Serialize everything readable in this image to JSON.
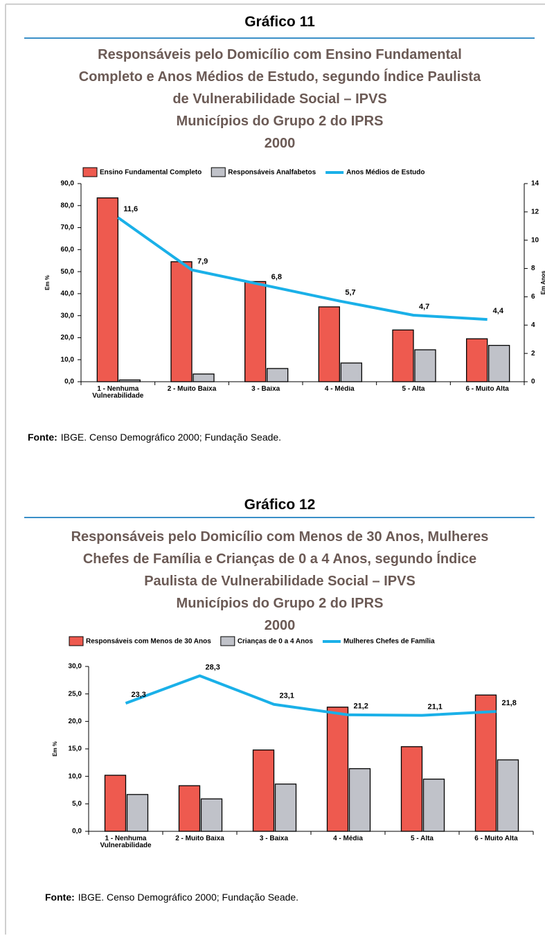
{
  "chart_data": [
    {
      "type": "bar",
      "label": "Gráfico 11",
      "title": [
        "Responsáveis pelo Domicílio com Ensino Fundamental",
        "Completo e Anos Médios de Estudo, segundo Índice Paulista",
        "de Vulnerabilidade Social – IPVS",
        "Municípios do Grupo 2 do IPRS",
        "2000"
      ],
      "categories": [
        "1 - Nenhuma Vulnerabilidade",
        "2 - Muito Baixa",
        "3 - Baixa",
        "4 - Média",
        "5 - Alta",
        "6 - Muito Alta"
      ],
      "series": [
        {
          "name": "Ensino Fundamental Completo",
          "color": "#ee5a4f",
          "values": [
            83.5,
            54.5,
            45.5,
            34,
            23.5,
            19.5
          ]
        },
        {
          "name": "Responsáveis Analfabetos",
          "color": "#c0c2c9",
          "values": [
            0.8,
            3.5,
            6,
            8.5,
            14.5,
            16.5
          ]
        },
        {
          "name": "Anos Médios de Estudo",
          "color": "#1ab0e8",
          "type": "line",
          "axis": "y2",
          "values": [
            11.6,
            7.9,
            6.8,
            5.7,
            4.7,
            4.4
          ],
          "value_labels": [
            "11,6",
            "7,9",
            "6,8",
            "5,7",
            "4,7",
            "4,4"
          ]
        }
      ],
      "ylabel": "Em %",
      "y2label": "Em Anos",
      "ylim": [
        0,
        90
      ],
      "yticks": [
        {
          "value": 0,
          "label": "0,0"
        },
        {
          "value": 10,
          "label": "10,0"
        },
        {
          "value": 20,
          "label": "20,0"
        },
        {
          "value": 30,
          "label": "30,0"
        },
        {
          "value": 40,
          "label": "40,0"
        },
        {
          "value": 50,
          "label": "50,0"
        },
        {
          "value": 60,
          "label": "60,0"
        },
        {
          "value": 70,
          "label": "70,0"
        },
        {
          "value": 80,
          "label": "80,0"
        },
        {
          "value": 90,
          "label": "90,0"
        }
      ],
      "y2lim": [
        0,
        14
      ],
      "y2ticks": [
        0,
        2,
        4,
        6,
        8,
        10,
        12,
        14
      ],
      "source_label": "Fonte:",
      "source": "IBGE. Censo Demográfico 2000; Fundação Seade."
    },
    {
      "type": "bar",
      "label": "Gráfico 12",
      "title": [
        "Responsáveis pelo Domicílio com Menos de 30 Anos, Mulheres",
        "Chefes de Família e Crianças de 0 a 4 Anos, segundo Índice",
        "Paulista de Vulnerabilidade Social – IPVS",
        "Municípios do Grupo 2 do IPRS",
        "2000"
      ],
      "categories": [
        "1 - Nenhuma Vulnerabilidade",
        "2 - Muito Baixa",
        "3 - Baixa",
        "4 - Média",
        "5 - Alta",
        "6 - Muito Alta"
      ],
      "series": [
        {
          "name": "Responsáveis com Menos de 30 Anos",
          "color": "#ee5a4f",
          "values": [
            10.2,
            8.3,
            14.8,
            22.6,
            15.4,
            24.8
          ]
        },
        {
          "name": "Crianças de 0 a 4 Anos",
          "color": "#c0c2c9",
          "values": [
            6.7,
            5.9,
            8.6,
            11.4,
            9.5,
            13.0
          ]
        },
        {
          "name": "Mulheres Chefes de Família",
          "color": "#1ab0e8",
          "type": "line",
          "values": [
            23.3,
            28.3,
            23.1,
            21.2,
            21.1,
            21.8
          ],
          "value_labels": [
            "23,3",
            "28,3",
            "23,1",
            "21,2",
            "21,1",
            "21,8"
          ]
        }
      ],
      "ylabel": "Em %",
      "ylim": [
        0,
        30
      ],
      "yticks": [
        {
          "value": 0,
          "label": "0,0"
        },
        {
          "value": 5,
          "label": "5,0"
        },
        {
          "value": 10,
          "label": "10,0"
        },
        {
          "value": 15,
          "label": "15,0"
        },
        {
          "value": 20,
          "label": "20,0"
        },
        {
          "value": 25,
          "label": "25,0"
        },
        {
          "value": 30,
          "label": "30,0"
        }
      ],
      "source_label": "Fonte:",
      "source": "IBGE. Censo Demográfico 2000; Fundação Seade."
    }
  ]
}
